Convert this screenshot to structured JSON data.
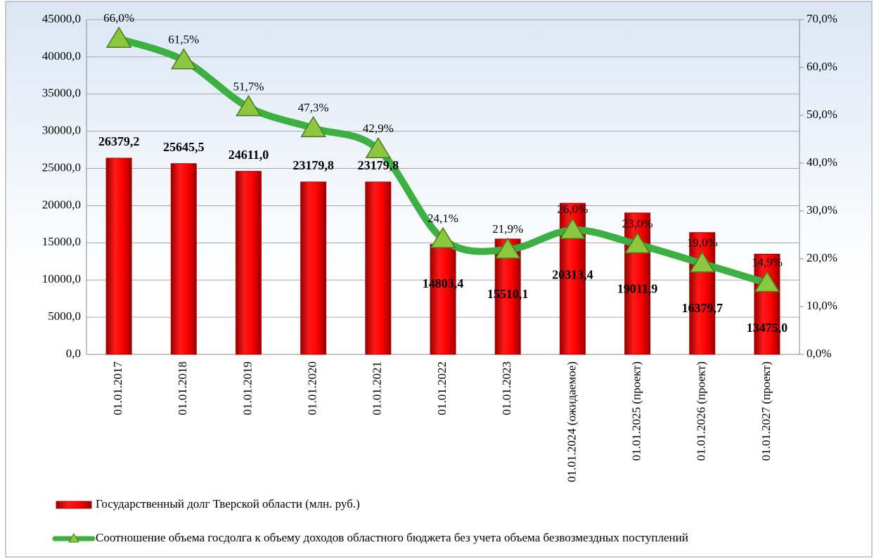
{
  "chart_data": {
    "type": "combo",
    "categories": [
      "01.01.2017",
      "01.01.2018",
      "01.01.2019",
      "01.01.2020",
      "01.01.2021",
      "01.01.2022",
      "01.01.2023",
      "01.01.2024 (ожидаемое)",
      "01.01.2025 (проект)",
      "01.01.2026 (проект)",
      "01.01.2027 (проект)"
    ],
    "series": [
      {
        "name": "Государственный долг Тверской области (млн. руб.)",
        "type": "bar",
        "color": "#e60000",
        "values": [
          26379.2,
          25645.5,
          24611.0,
          23179.8,
          23179.8,
          14803.4,
          15510.1,
          20313.4,
          19011.9,
          16379.7,
          13475.0
        ],
        "value_labels": [
          "26379,2",
          "25645,5",
          "24611,0",
          "23179,8",
          "23179,8",
          "14803,4",
          "15510,1",
          "20313,4",
          "19011,9",
          "16379,7",
          "13475,0"
        ]
      },
      {
        "name": "Соотношение объема госдолга к объему доходов областного бюджета без учета объема безвозмездных поступлений",
        "type": "line",
        "axis": "y2",
        "color": "#3cb043",
        "values": [
          66.0,
          61.5,
          51.7,
          47.3,
          42.9,
          24.1,
          21.9,
          26.0,
          23.0,
          19.0,
          14.9
        ],
        "value_labels": [
          "66,0%",
          "61,5%",
          "51,7%",
          "47,3%",
          "42,9%",
          "24,1%",
          "21,9%",
          "26,0%",
          "23,0%",
          "19,0%",
          "14,9%"
        ]
      }
    ],
    "ylim": [
      0,
      45000
    ],
    "yticks": [
      {
        "value": 0,
        "label": "0,0"
      },
      {
        "value": 5000,
        "label": "5000,0"
      },
      {
        "value": 10000,
        "label": "10000,0"
      },
      {
        "value": 15000,
        "label": "15000,0"
      },
      {
        "value": 20000,
        "label": "20000,0"
      },
      {
        "value": 25000,
        "label": "25000,0"
      },
      {
        "value": 30000,
        "label": "30000,0"
      },
      {
        "value": 35000,
        "label": "35000,0"
      },
      {
        "value": 40000,
        "label": "40000,0"
      },
      {
        "value": 45000,
        "label": "45000,0"
      }
    ],
    "y2lim": [
      0,
      70
    ],
    "y2ticks": [
      {
        "value": 0,
        "label": "0,0%"
      },
      {
        "value": 10,
        "label": "10,0%"
      },
      {
        "value": 20,
        "label": "20,0%"
      },
      {
        "value": 30,
        "label": "30,0%"
      },
      {
        "value": 40,
        "label": "40,0%"
      },
      {
        "value": 50,
        "label": "50,0%"
      },
      {
        "value": 60,
        "label": "60,0%"
      },
      {
        "value": 70,
        "label": "70,0%"
      }
    ],
    "grid": true
  }
}
